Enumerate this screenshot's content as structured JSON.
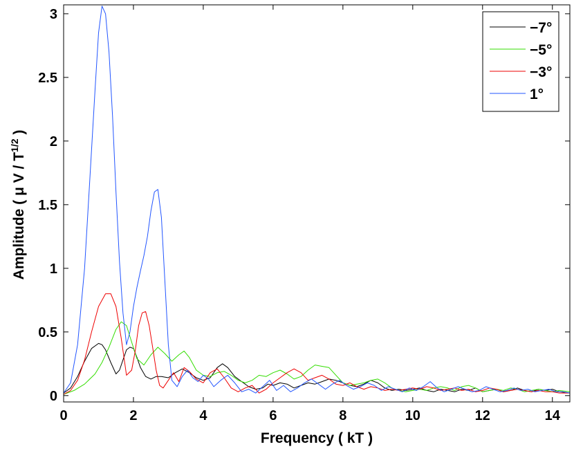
{
  "chart_data": {
    "type": "line",
    "title": "",
    "xlabel": "Frequency ( kT )",
    "ylabel_main": "Amplitude ( μ V / T",
    "ylabel_sup": "1/2",
    "ylabel_close": " )",
    "xlim": [
      0,
      14.5
    ],
    "ylim": [
      -0.05,
      3.07
    ],
    "xticks": [
      0,
      2,
      4,
      6,
      8,
      10,
      12,
      14
    ],
    "yticks": [
      0,
      0.5,
      1,
      1.5,
      2,
      2.5,
      3
    ],
    "ytick_labels": [
      "0",
      "0.5",
      "1",
      "1.5",
      "2",
      "2.5",
      "3"
    ],
    "grid": false,
    "legend_position": "top-right",
    "series": [
      {
        "name": "−7°",
        "color": "#000000",
        "x": [
          0,
          0.2,
          0.4,
          0.6,
          0.8,
          1.0,
          1.1,
          1.2,
          1.35,
          1.5,
          1.6,
          1.7,
          1.8,
          1.9,
          2.0,
          2.1,
          2.2,
          2.35,
          2.5,
          2.65,
          2.8,
          3.0,
          3.2,
          3.4,
          3.6,
          3.8,
          4.0,
          4.2,
          4.4,
          4.55,
          4.7,
          4.9,
          5.1,
          5.3,
          5.5,
          5.7,
          5.85,
          6.0,
          6.2,
          6.4,
          6.6,
          6.8,
          7.0,
          7.2,
          7.4,
          7.6,
          7.8,
          8.0,
          8.2,
          8.4,
          8.6,
          8.8,
          9.0,
          9.2,
          9.4,
          9.6,
          9.8,
          10.0,
          10.2,
          10.4,
          10.6,
          10.8,
          11.0,
          11.2,
          11.4,
          11.6,
          11.8,
          12.0,
          12.2,
          12.4,
          12.6,
          12.8,
          13.0,
          13.2,
          13.4,
          13.6,
          13.8,
          14.0,
          14.2,
          14.5
        ],
        "y": [
          0.02,
          0.06,
          0.15,
          0.27,
          0.37,
          0.41,
          0.4,
          0.36,
          0.26,
          0.17,
          0.2,
          0.28,
          0.36,
          0.38,
          0.37,
          0.3,
          0.22,
          0.15,
          0.13,
          0.15,
          0.15,
          0.14,
          0.18,
          0.21,
          0.18,
          0.14,
          0.12,
          0.14,
          0.22,
          0.25,
          0.22,
          0.15,
          0.11,
          0.07,
          0.05,
          0.06,
          0.09,
          0.08,
          0.1,
          0.09,
          0.06,
          0.08,
          0.1,
          0.09,
          0.11,
          0.13,
          0.12,
          0.1,
          0.08,
          0.07,
          0.09,
          0.12,
          0.1,
          0.06,
          0.04,
          0.05,
          0.04,
          0.05,
          0.06,
          0.04,
          0.03,
          0.05,
          0.04,
          0.03,
          0.05,
          0.04,
          0.06,
          0.03,
          0.04,
          0.05,
          0.03,
          0.04,
          0.06,
          0.04,
          0.03,
          0.05,
          0.04,
          0.05,
          0.03,
          0.02
        ]
      },
      {
        "name": "−5°",
        "color": "#33dd00",
        "x": [
          0,
          0.3,
          0.6,
          0.9,
          1.1,
          1.3,
          1.5,
          1.65,
          1.8,
          1.95,
          2.1,
          2.3,
          2.5,
          2.7,
          2.9,
          3.1,
          3.3,
          3.45,
          3.6,
          3.8,
          4.0,
          4.2,
          4.4,
          4.6,
          4.8,
          5.0,
          5.2,
          5.4,
          5.6,
          5.8,
          6.0,
          6.2,
          6.4,
          6.6,
          6.8,
          7.0,
          7.2,
          7.4,
          7.6,
          7.8,
          8.0,
          8.2,
          8.4,
          8.6,
          8.8,
          9.0,
          9.2,
          9.4,
          9.6,
          9.8,
          10.0,
          10.2,
          10.4,
          10.6,
          10.8,
          11.0,
          11.2,
          11.4,
          11.6,
          11.8,
          12.0,
          12.2,
          12.4,
          12.6,
          12.8,
          13.0,
          13.2,
          13.4,
          13.6,
          13.8,
          14.0,
          14.2,
          14.5
        ],
        "y": [
          0.01,
          0.04,
          0.09,
          0.17,
          0.26,
          0.38,
          0.52,
          0.58,
          0.55,
          0.42,
          0.29,
          0.24,
          0.32,
          0.38,
          0.33,
          0.27,
          0.32,
          0.35,
          0.3,
          0.2,
          0.16,
          0.15,
          0.18,
          0.19,
          0.16,
          0.12,
          0.1,
          0.12,
          0.16,
          0.15,
          0.18,
          0.2,
          0.17,
          0.13,
          0.15,
          0.2,
          0.24,
          0.23,
          0.22,
          0.16,
          0.1,
          0.08,
          0.09,
          0.1,
          0.12,
          0.13,
          0.1,
          0.06,
          0.04,
          0.03,
          0.04,
          0.05,
          0.04,
          0.06,
          0.07,
          0.06,
          0.04,
          0.07,
          0.08,
          0.06,
          0.03,
          0.04,
          0.05,
          0.04,
          0.06,
          0.05,
          0.03,
          0.04,
          0.05,
          0.04,
          0.03,
          0.04,
          0.03
        ]
      },
      {
        "name": "−3°",
        "color": "#ee0000",
        "x": [
          0,
          0.2,
          0.4,
          0.6,
          0.8,
          1.0,
          1.2,
          1.35,
          1.5,
          1.65,
          1.8,
          1.95,
          2.05,
          2.15,
          2.25,
          2.35,
          2.45,
          2.55,
          2.65,
          2.75,
          2.85,
          3.0,
          3.15,
          3.3,
          3.45,
          3.6,
          3.8,
          4.0,
          4.2,
          4.4,
          4.6,
          4.8,
          5.0,
          5.2,
          5.4,
          5.6,
          5.8,
          6.0,
          6.2,
          6.4,
          6.6,
          6.8,
          7.0,
          7.2,
          7.4,
          7.6,
          7.8,
          8.0,
          8.2,
          8.4,
          8.6,
          8.8,
          9.0,
          9.2,
          9.4,
          9.6,
          9.8,
          10.0,
          10.2,
          10.4,
          10.6,
          10.8,
          11.0,
          11.2,
          11.4,
          11.6,
          11.8,
          12.0,
          12.2,
          12.4,
          12.6,
          12.8,
          13.0,
          13.2,
          13.4,
          13.6,
          13.8,
          14.0,
          14.2,
          14.5
        ],
        "y": [
          0.01,
          0.04,
          0.12,
          0.28,
          0.5,
          0.7,
          0.8,
          0.8,
          0.7,
          0.45,
          0.16,
          0.2,
          0.35,
          0.55,
          0.65,
          0.66,
          0.55,
          0.38,
          0.2,
          0.08,
          0.06,
          0.12,
          0.18,
          0.11,
          0.22,
          0.19,
          0.13,
          0.1,
          0.18,
          0.21,
          0.14,
          0.06,
          0.03,
          0.06,
          0.08,
          0.02,
          0.05,
          0.1,
          0.14,
          0.18,
          0.21,
          0.18,
          0.12,
          0.14,
          0.16,
          0.13,
          0.09,
          0.08,
          0.1,
          0.07,
          0.05,
          0.07,
          0.06,
          0.04,
          0.05,
          0.04,
          0.05,
          0.06,
          0.05,
          0.07,
          0.06,
          0.04,
          0.05,
          0.06,
          0.04,
          0.05,
          0.03,
          0.04,
          0.06,
          0.05,
          0.03,
          0.04,
          0.05,
          0.04,
          0.03,
          0.04,
          0.03,
          0.03,
          0.02,
          0.02
        ]
      },
      {
        "name": "1°",
        "color": "#2255ff",
        "x": [
          0,
          0.2,
          0.4,
          0.6,
          0.75,
          0.9,
          1.0,
          1.1,
          1.2,
          1.3,
          1.4,
          1.5,
          1.6,
          1.7,
          1.8,
          1.9,
          2.0,
          2.1,
          2.2,
          2.3,
          2.4,
          2.5,
          2.6,
          2.7,
          2.8,
          2.9,
          3.0,
          3.1,
          3.25,
          3.4,
          3.55,
          3.7,
          3.85,
          4.0,
          4.15,
          4.3,
          4.5,
          4.7,
          4.9,
          5.1,
          5.3,
          5.5,
          5.7,
          5.9,
          6.1,
          6.3,
          6.5,
          6.7,
          6.9,
          7.1,
          7.3,
          7.5,
          7.7,
          7.9,
          8.1,
          8.3,
          8.5,
          8.7,
          8.9,
          9.1,
          9.3,
          9.5,
          9.7,
          9.9,
          10.1,
          10.3,
          10.5,
          10.7,
          10.9,
          11.1,
          11.3,
          11.5,
          11.7,
          11.9,
          12.1,
          12.3,
          12.5,
          12.7,
          12.9,
          13.1,
          13.3,
          13.5,
          13.7,
          13.9,
          14.1,
          14.3,
          14.5
        ],
        "y": [
          0.02,
          0.1,
          0.4,
          1.0,
          1.7,
          2.4,
          2.85,
          3.06,
          3.0,
          2.7,
          2.2,
          1.6,
          1.05,
          0.65,
          0.4,
          0.5,
          0.7,
          0.85,
          0.98,
          1.1,
          1.25,
          1.45,
          1.6,
          1.62,
          1.4,
          0.9,
          0.4,
          0.12,
          0.07,
          0.15,
          0.2,
          0.14,
          0.11,
          0.16,
          0.13,
          0.07,
          0.12,
          0.16,
          0.1,
          0.03,
          0.05,
          0.02,
          0.07,
          0.12,
          0.04,
          0.08,
          0.03,
          0.06,
          0.1,
          0.13,
          0.09,
          0.05,
          0.09,
          0.12,
          0.08,
          0.05,
          0.07,
          0.1,
          0.08,
          0.04,
          0.07,
          0.05,
          0.03,
          0.06,
          0.04,
          0.07,
          0.11,
          0.06,
          0.03,
          0.05,
          0.07,
          0.05,
          0.03,
          0.04,
          0.07,
          0.05,
          0.03,
          0.04,
          0.06,
          0.04,
          0.05,
          0.03,
          0.04,
          0.05,
          0.03,
          0.03,
          0.02
        ]
      }
    ]
  }
}
